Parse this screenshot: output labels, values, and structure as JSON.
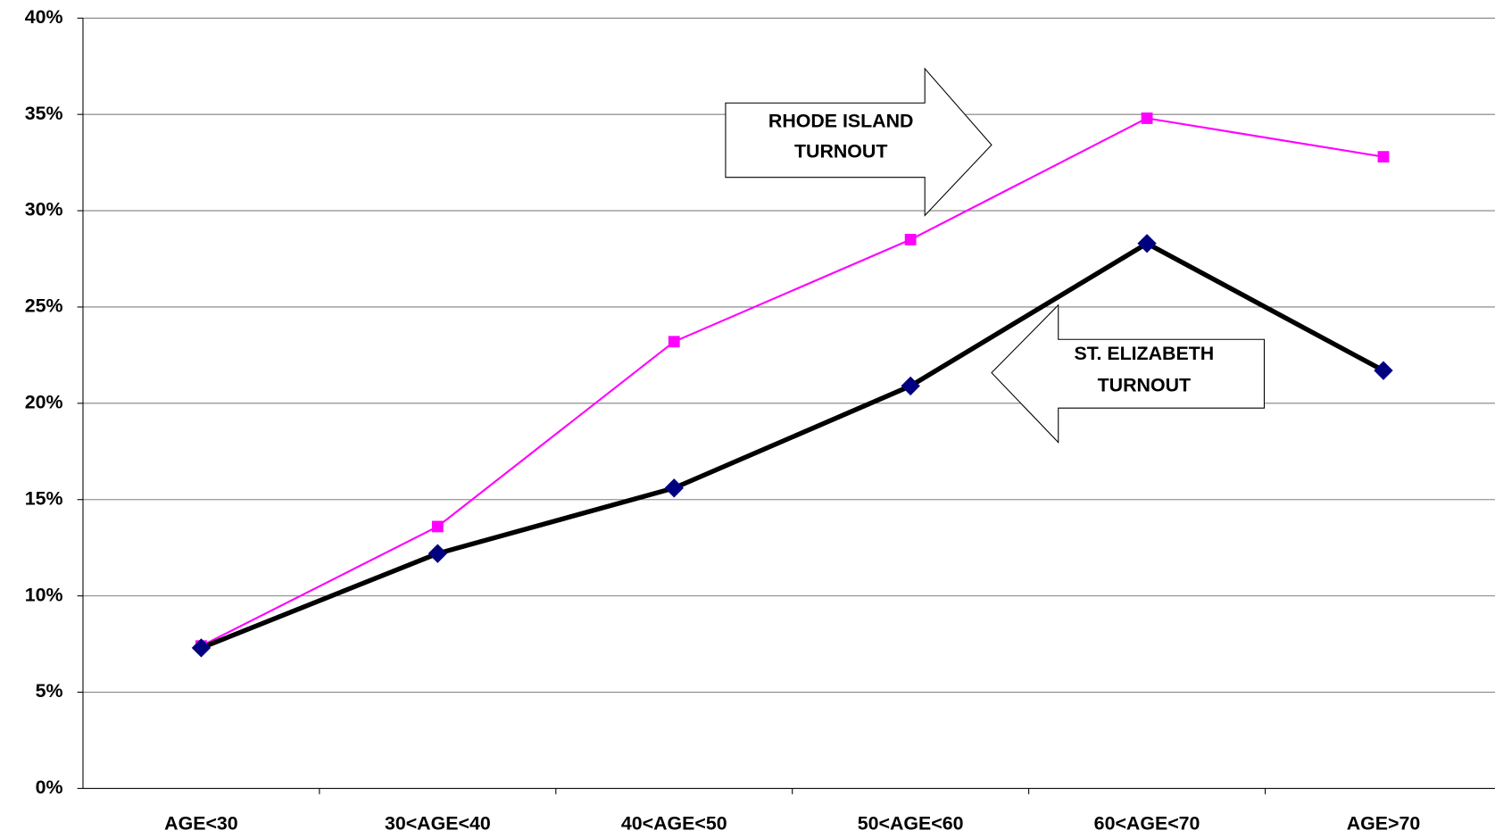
{
  "chart_data": {
    "type": "line",
    "categories": [
      "AGE<30",
      "30<AGE<40",
      "40<AGE<50",
      "50<AGE<60",
      "60<AGE<70",
      "AGE>70"
    ],
    "series": [
      {
        "color": "#ff00ff",
        "marker": "square",
        "values": [
          7.4,
          13.6,
          23.2,
          28.5,
          34.8,
          32.8
        ]
      },
      {
        "color": "#000000",
        "marker_color": "#000080",
        "marker": "diamond",
        "values": [
          7.3,
          12.2,
          15.6,
          20.9,
          28.3,
          21.7
        ]
      }
    ],
    "annotations": [
      {
        "lines": [
          "RHODE ISLAND",
          "TURNOUT"
        ]
      },
      {
        "lines": [
          "ST. ELIZABETH",
          "TURNOUT"
        ]
      }
    ],
    "ylim": [
      0,
      40
    ],
    "yticks": [
      {
        "value": 0,
        "label": "0%"
      },
      {
        "value": 5,
        "label": "5%"
      },
      {
        "value": 10,
        "label": "10%"
      },
      {
        "value": 15,
        "label": "15%"
      },
      {
        "value": 20,
        "label": "20%"
      },
      {
        "value": 25,
        "label": "25%"
      },
      {
        "value": 30,
        "label": "30%"
      },
      {
        "value": 35,
        "label": "35%"
      },
      {
        "value": 40,
        "label": "40%"
      }
    ],
    "grid": true
  }
}
